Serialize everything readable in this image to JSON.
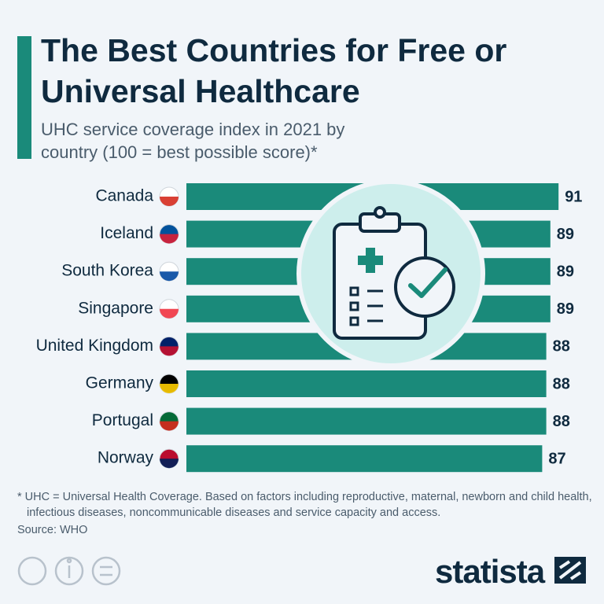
{
  "chart_data": {
    "type": "bar",
    "orientation": "horizontal",
    "title": "The Best Countries for Free or Universal Healthcare",
    "subtitle": "UHC service coverage index in 2021 by country (100 = best possible score)*",
    "categories": [
      "Canada",
      "Iceland",
      "South Korea",
      "Singapore",
      "United Kingdom",
      "Germany",
      "Portugal",
      "Norway"
    ],
    "values": [
      91,
      89,
      89,
      89,
      88,
      88,
      88,
      87
    ],
    "color": "#1a8a7a",
    "note": "* UHC = Universal Health Coverage. Based on factors including reproductive, maternal, newborn and child health, infectious diseases, noncommunicable diseases and service capacity and access.",
    "source": "Source: WHO"
  },
  "brand": "statista"
}
